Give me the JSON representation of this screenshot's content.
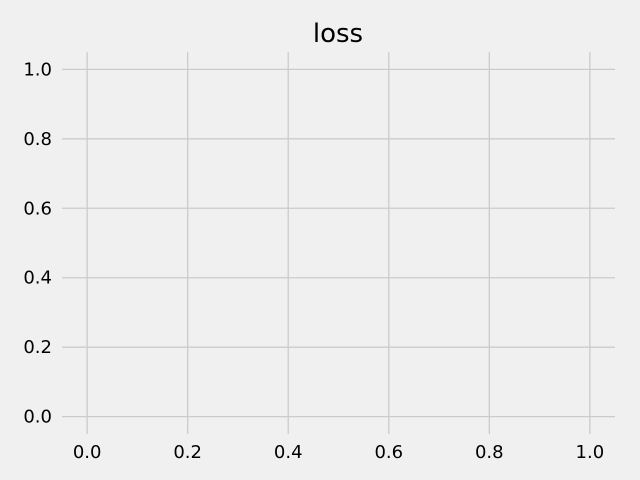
{
  "chart_data": {
    "type": "line",
    "title": "loss",
    "xlabel": "",
    "ylabel": "",
    "series": [],
    "xlim": [
      -0.05,
      1.05
    ],
    "ylim": [
      -0.05,
      1.05
    ],
    "xticks": [
      0.0,
      0.2,
      0.4,
      0.6,
      0.8,
      1.0
    ],
    "xtick_labels": [
      "0.0",
      "0.2",
      "0.4",
      "0.6",
      "0.8",
      "1.0"
    ],
    "yticks": [
      0.0,
      0.2,
      0.4,
      0.6,
      0.8,
      1.0
    ],
    "ytick_labels": [
      "0.0",
      "0.2",
      "0.4",
      "0.6",
      "0.8",
      "1.0"
    ],
    "grid": true,
    "legend": "none",
    "colors": {
      "background": "#f0f0f0",
      "grid": "#cbcbcb",
      "text": "#000000"
    }
  }
}
